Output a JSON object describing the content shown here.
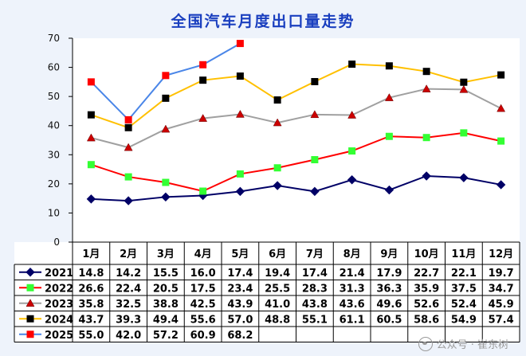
{
  "chart_data": {
    "type": "line",
    "title": "全国汽车月度出口量走势",
    "categories": [
      "1月",
      "2月",
      "3月",
      "4月",
      "5月",
      "6月",
      "7月",
      "8月",
      "9月",
      "10月",
      "11月",
      "12月"
    ],
    "ylim": [
      0,
      70
    ],
    "yticks": [
      0,
      10,
      20,
      30,
      40,
      50,
      60,
      70
    ],
    "grid": false,
    "legend": "table-below",
    "series": [
      {
        "name": "2021",
        "color": "#000066",
        "marker": "diamond",
        "values": [
          14.8,
          14.2,
          15.5,
          16.0,
          17.4,
          19.4,
          17.4,
          21.4,
          17.9,
          22.7,
          22.1,
          19.7
        ]
      },
      {
        "name": "2022",
        "color": "#ff0000",
        "marker": "square",
        "marker_color": "#33ff33",
        "values": [
          26.6,
          22.4,
          20.5,
          17.5,
          23.4,
          25.5,
          28.3,
          31.3,
          36.3,
          35.9,
          37.5,
          34.7
        ]
      },
      {
        "name": "2023",
        "color": "#a0a0a0",
        "marker": "triangle",
        "marker_color": "#cc0000",
        "values": [
          35.8,
          32.5,
          38.8,
          42.5,
          43.9,
          41.0,
          43.8,
          43.6,
          49.6,
          52.6,
          52.4,
          45.9
        ]
      },
      {
        "name": "2024",
        "color": "#ffc000",
        "marker": "square",
        "marker_color": "#000000",
        "values": [
          43.7,
          39.3,
          49.4,
          55.6,
          57.0,
          48.8,
          55.1,
          61.1,
          60.5,
          58.6,
          54.9,
          57.4
        ]
      },
      {
        "name": "2025",
        "color": "#4a86e8",
        "marker": "square",
        "marker_color": "#ff0000",
        "values": [
          55.0,
          42.0,
          57.2,
          60.9,
          68.2,
          null,
          null,
          null,
          null,
          null,
          null,
          null
        ]
      }
    ]
  },
  "watermark": "公众号 · 崔东树"
}
